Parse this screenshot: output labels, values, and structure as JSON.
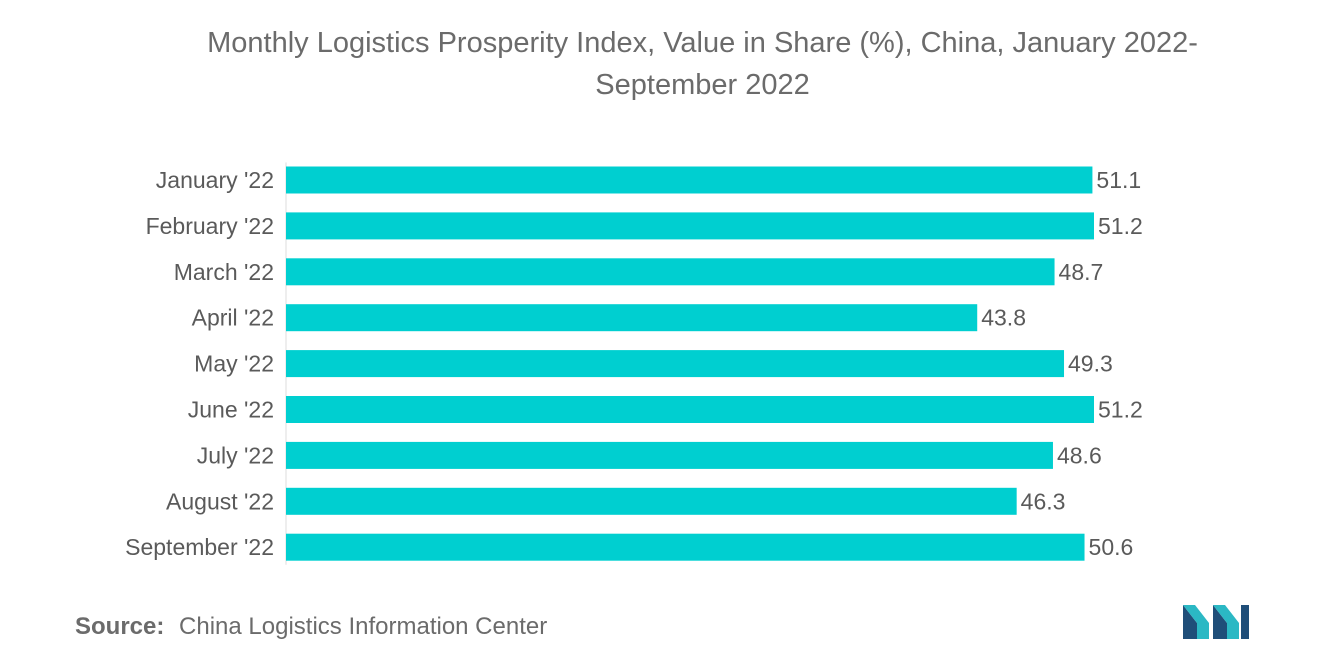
{
  "chart_data": {
    "type": "bar",
    "orientation": "horizontal",
    "title": "Monthly Logistics Prosperity Index, Value in Share (%), China, January 2022-September 2022",
    "categories": [
      "January '22",
      "February '22",
      "March '22",
      "April '22",
      "May '22",
      "June '22",
      "July '22",
      "August '22",
      "September '22"
    ],
    "values": [
      51.1,
      51.2,
      48.7,
      43.8,
      49.3,
      51.2,
      48.6,
      46.3,
      50.6
    ],
    "value_labels": [
      "51.1",
      "51.2",
      "48.7",
      "43.8",
      "49.3",
      "51.2",
      "48.6",
      "46.3",
      "50.6"
    ],
    "xlim": [
      0,
      51.2
    ],
    "grid": false,
    "legend": "none",
    "bar_color": "#00cfd0"
  },
  "source": {
    "label": "Source:",
    "text": "China Logistics Information Center"
  },
  "colors": {
    "logo_dark": "#1f4e79",
    "logo_light": "#2bb8c4"
  },
  "icons": {
    "logo": "mordor-intelligence-logo-icon"
  }
}
